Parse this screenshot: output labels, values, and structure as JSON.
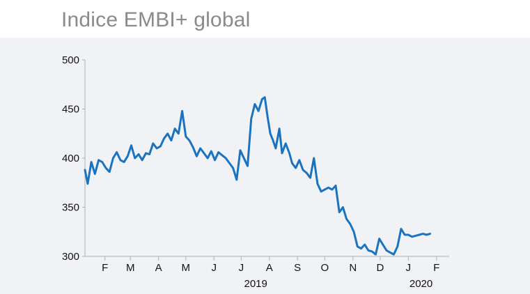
{
  "title": "Indice EMBI+ global",
  "colors": {
    "line": "#1a73c0",
    "axis": "#b0b0b0",
    "panel": "#f1f2f6",
    "title": "#8a8a8a"
  },
  "chart_data": {
    "type": "line",
    "title": "Indice EMBI+ global",
    "xlabel": "",
    "ylabel": "",
    "ylim": [
      300,
      500
    ],
    "yticks": [
      300,
      350,
      400,
      450,
      500
    ],
    "xlim": [
      "2019-01-10",
      "2020-02-15"
    ],
    "month_ticks": [
      {
        "label": "F",
        "date": "2019-02-01"
      },
      {
        "label": "M",
        "date": "2019-03-01"
      },
      {
        "label": "A",
        "date": "2019-04-01"
      },
      {
        "label": "M",
        "date": "2019-05-01"
      },
      {
        "label": "J",
        "date": "2019-06-01"
      },
      {
        "label": "J",
        "date": "2019-07-01"
      },
      {
        "label": "A",
        "date": "2019-08-01"
      },
      {
        "label": "S",
        "date": "2019-09-01"
      },
      {
        "label": "O",
        "date": "2019-10-01"
      },
      {
        "label": "N",
        "date": "2019-11-01"
      },
      {
        "label": "D",
        "date": "2019-12-01"
      },
      {
        "label": "J",
        "date": "2020-01-01"
      },
      {
        "label": "F",
        "date": "2020-02-01"
      }
    ],
    "year_labels": [
      {
        "label": "2019",
        "date": "2019-07-17"
      },
      {
        "label": "2020",
        "date": "2020-01-15"
      }
    ],
    "grid": false,
    "series": [
      {
        "name": "",
        "x": [
          "2019-01-10",
          "2019-01-13",
          "2019-01-17",
          "2019-01-21",
          "2019-01-25",
          "2019-01-29",
          "2019-02-02",
          "2019-02-06",
          "2019-02-10",
          "2019-02-14",
          "2019-02-18",
          "2019-02-22",
          "2019-02-26",
          "2019-03-02",
          "2019-03-06",
          "2019-03-10",
          "2019-03-14",
          "2019-03-18",
          "2019-03-22",
          "2019-03-26",
          "2019-03-30",
          "2019-04-03",
          "2019-04-07",
          "2019-04-11",
          "2019-04-15",
          "2019-04-19",
          "2019-04-23",
          "2019-04-27",
          "2019-05-01",
          "2019-05-05",
          "2019-05-09",
          "2019-05-13",
          "2019-05-17",
          "2019-05-21",
          "2019-05-25",
          "2019-05-29",
          "2019-06-02",
          "2019-06-06",
          "2019-06-10",
          "2019-06-14",
          "2019-06-18",
          "2019-06-22",
          "2019-06-26",
          "2019-06-30",
          "2019-07-04",
          "2019-07-08",
          "2019-07-12",
          "2019-07-16",
          "2019-07-20",
          "2019-07-24",
          "2019-07-27",
          "2019-07-30",
          "2019-08-02",
          "2019-08-05",
          "2019-08-08",
          "2019-08-10",
          "2019-08-12",
          "2019-08-15",
          "2019-08-19",
          "2019-08-23",
          "2019-08-26",
          "2019-08-30",
          "2019-09-03",
          "2019-09-07",
          "2019-09-11",
          "2019-09-15",
          "2019-09-19",
          "2019-09-23",
          "2019-09-27",
          "2019-10-01",
          "2019-10-05",
          "2019-10-09",
          "2019-10-13",
          "2019-10-17",
          "2019-10-21",
          "2019-10-25",
          "2019-10-29",
          "2019-11-02",
          "2019-11-06",
          "2019-11-10",
          "2019-11-14",
          "2019-11-18",
          "2019-11-22",
          "2019-11-26",
          "2019-11-30",
          "2019-12-04",
          "2019-12-08",
          "2019-12-12",
          "2019-12-16",
          "2019-12-20",
          "2019-12-24",
          "2019-12-28",
          "2020-01-01",
          "2020-01-05",
          "2020-01-09",
          "2020-01-13",
          "2020-01-17",
          "2020-01-21",
          "2020-01-25"
        ],
        "values": [
          388,
          374,
          396,
          384,
          398,
          396,
          390,
          386,
          400,
          406,
          398,
          396,
          402,
          413,
          400,
          404,
          398,
          405,
          404,
          415,
          410,
          412,
          420,
          425,
          418,
          430,
          425,
          448,
          422,
          418,
          411,
          402,
          410,
          405,
          400,
          407,
          398,
          406,
          403,
          400,
          395,
          390,
          378,
          408,
          400,
          392,
          440,
          455,
          448,
          460,
          462,
          442,
          425,
          418,
          410,
          420,
          430,
          405,
          415,
          405,
          395,
          390,
          398,
          388,
          385,
          380,
          400,
          374,
          366,
          368,
          370,
          368,
          372,
          345,
          350,
          338,
          333,
          325,
          310,
          308,
          312,
          306,
          305,
          302,
          318,
          312,
          306,
          304,
          302,
          310,
          328,
          322,
          322,
          320,
          321,
          322,
          323,
          322,
          323
        ],
        "values_note": ""
      }
    ]
  }
}
